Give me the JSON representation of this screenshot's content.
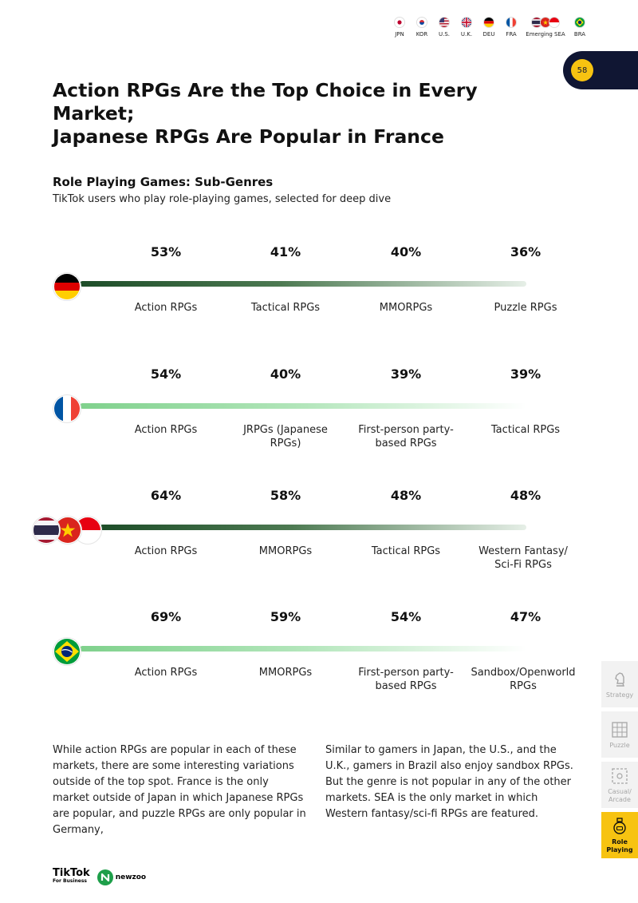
{
  "header": {
    "flags": [
      {
        "code": "JPN",
        "label": "JPN"
      },
      {
        "code": "KOR",
        "label": "KOR"
      },
      {
        "code": "USA",
        "label": "U.S."
      },
      {
        "code": "UK",
        "label": "U.K."
      },
      {
        "code": "DEU",
        "label": "DEU"
      },
      {
        "code": "FRA",
        "label": "FRA"
      },
      {
        "code": "SEA",
        "label": "Emerging SEA"
      },
      {
        "code": "BRA",
        "label": "BRA"
      }
    ],
    "page_number": "58"
  },
  "title_line1": "Action RPGs Are the Top Choice in Every Market;",
  "title_line2": "Japanese RPGs Are Popular in France",
  "section": {
    "title": "Role Playing Games: Sub-Genres",
    "description": "TikTok users who play role-playing games, selected for deep dive"
  },
  "markets": [
    {
      "flag": "Germany",
      "style": "dark",
      "items": [
        {
          "pct": "53%",
          "label": "Action RPGs"
        },
        {
          "pct": "41%",
          "label": "Tactical RPGs"
        },
        {
          "pct": "40%",
          "label": "MMORPGs"
        },
        {
          "pct": "36%",
          "label": "Puzzle RPGs"
        }
      ]
    },
    {
      "flag": "France",
      "style": "light",
      "items": [
        {
          "pct": "54%",
          "label": "Action RPGs"
        },
        {
          "pct": "40%",
          "label": "JRPGs (Japanese RPGs)"
        },
        {
          "pct": "39%",
          "label": "First-person party-based RPGs"
        },
        {
          "pct": "39%",
          "label": "Tactical RPGs"
        }
      ]
    },
    {
      "flag": "Emerging SEA",
      "style": "dark",
      "items": [
        {
          "pct": "64%",
          "label": "Action RPGs"
        },
        {
          "pct": "58%",
          "label": "MMORPGs"
        },
        {
          "pct": "48%",
          "label": "Tactical RPGs"
        },
        {
          "pct": "48%",
          "label": "Western Fantasy/ Sci-Fi RPGs"
        }
      ]
    },
    {
      "flag": "Brazil",
      "style": "light",
      "items": [
        {
          "pct": "69%",
          "label": "Action RPGs"
        },
        {
          "pct": "59%",
          "label": "MMORPGs"
        },
        {
          "pct": "54%",
          "label": "First-person party-based RPGs"
        },
        {
          "pct": "47%",
          "label": "Sandbox/Openworld RPGs"
        }
      ]
    }
  ],
  "body_left": "While action RPGs are popular in each of these markets, there are some interesting variations outside of the top spot. France is the only market outside of Japan in which Japanese RPGs are popular, and puzzle RPGs are only popular in Germany,",
  "body_right": "Similar to gamers in Japan, the U.S., and the U.K., gamers in Brazil also enjoy sandbox RPGs. But the genre is not popular in any of the other markets. SEA is the only market in which Western fantasy/sci-fi RPGs are featured.",
  "side_nav": [
    {
      "label": "Strategy",
      "icon": "chess-knight-icon",
      "active": false
    },
    {
      "label": "Puzzle",
      "icon": "puzzle-grid-icon",
      "active": false
    },
    {
      "label": "Casual/ Arcade",
      "icon": "arcade-icon",
      "active": false
    },
    {
      "label": "Role Playing",
      "icon": "potion-icon",
      "active": true
    }
  ],
  "footer": {
    "tiktok_main": "TikTok",
    "tiktok_sub": "For Business",
    "newzoo": "newzoo"
  },
  "colors": {
    "navy": "#101633",
    "yellow": "#f7c311",
    "dark_green": "#1d4d28",
    "light_green": "#7fd18c"
  }
}
